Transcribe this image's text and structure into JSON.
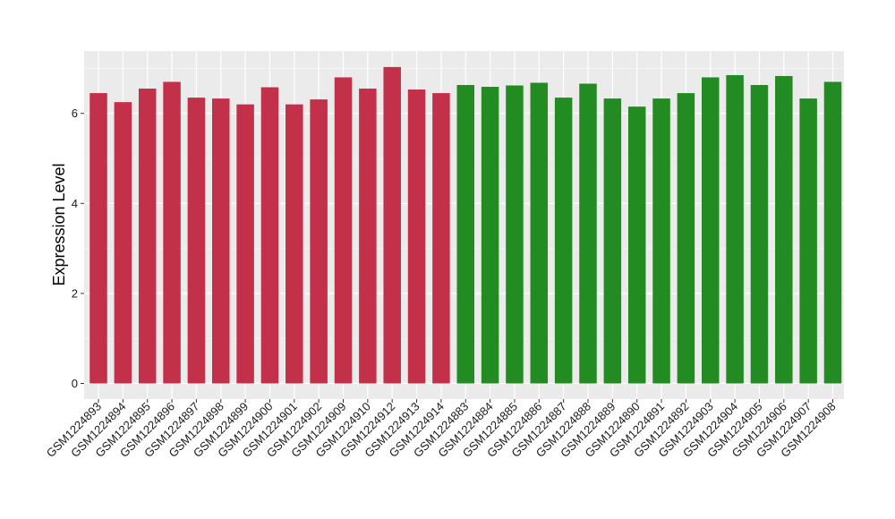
{
  "chart_data": {
    "type": "bar",
    "ylabel": "Expression Level",
    "xlabel": "",
    "ylim": [
      0,
      7.2
    ],
    "y_ticks": [
      0,
      2,
      4,
      6
    ],
    "grid": true,
    "panel_background": "#ebebeb",
    "grid_color": "#ffffff",
    "categories": [
      "GSM1224893",
      "GSM1224894",
      "GSM1224895",
      "GSM1224896",
      "GSM1224897",
      "GSM1224898",
      "GSM1224899",
      "GSM1224900",
      "GSM1224901",
      "GSM1224902",
      "GSM1224909",
      "GSM1224910",
      "GSM1224912",
      "GSM1224913",
      "GSM1224914",
      "GSM1224883",
      "GSM1224884",
      "GSM1224885",
      "GSM1224886",
      "GSM1224887",
      "GSM1224888",
      "GSM1224889",
      "GSM1224890",
      "GSM1224891",
      "GSM1224892",
      "GSM1224903",
      "GSM1224904",
      "GSM1224905",
      "GSM1224906",
      "GSM1224907",
      "GSM1224908"
    ],
    "values": [
      6.45,
      6.25,
      6.55,
      6.7,
      6.35,
      6.33,
      6.2,
      6.58,
      6.2,
      6.31,
      6.8,
      6.55,
      7.03,
      6.53,
      6.45,
      6.63,
      6.59,
      6.62,
      6.68,
      6.35,
      6.66,
      6.33,
      6.15,
      6.33,
      6.45,
      6.8,
      6.85,
      6.63,
      6.83,
      6.33,
      6.7
    ],
    "bar_colors": [
      "#c3304a",
      "#c3304a",
      "#c3304a",
      "#c3304a",
      "#c3304a",
      "#c3304a",
      "#c3304a",
      "#c3304a",
      "#c3304a",
      "#c3304a",
      "#c3304a",
      "#c3304a",
      "#c3304a",
      "#c3304a",
      "#c3304a",
      "#228b22",
      "#228b22",
      "#228b22",
      "#228b22",
      "#228b22",
      "#228b22",
      "#228b22",
      "#228b22",
      "#228b22",
      "#228b22",
      "#228b22",
      "#228b22",
      "#228b22",
      "#228b22",
      "#228b22",
      "#228b22"
    ]
  }
}
